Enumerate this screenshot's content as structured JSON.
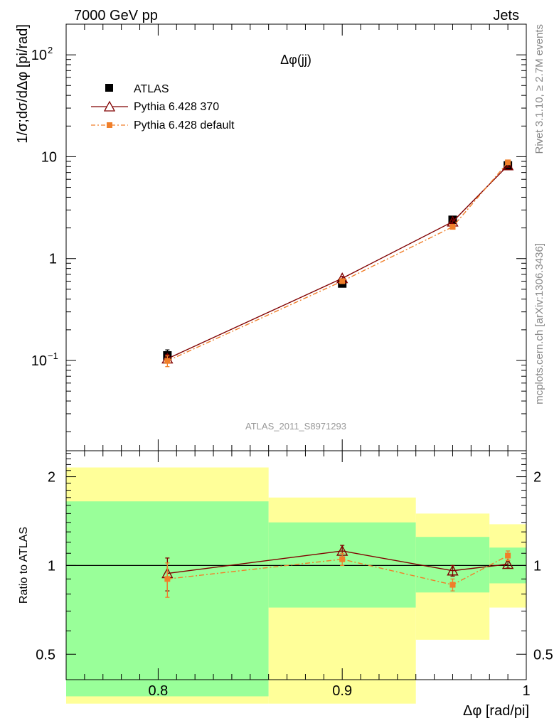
{
  "header": {
    "left": "7000 GeV pp",
    "right": "Jets"
  },
  "side_labels": {
    "top": "Rivet 3.1.10, ≥ 2.7M events",
    "bottom": "mcplots.cern.ch [arXiv:1306.3436]"
  },
  "watermark": "ATLAS_2011_S8971293",
  "colors": {
    "atlas": "#000000",
    "py370": "#800000",
    "pydefault": "#f07f2a",
    "band_green": "#99ff99",
    "band_yellow": "#ffff99"
  },
  "chart_data": [
    {
      "type": "line",
      "title": "Δφ(jj)",
      "ylabel": "1/σ;dσ/dΔφ [pi/rad]",
      "yscale": "log",
      "xlim": [
        0.75,
        1.0
      ],
      "ylim": [
        0.013,
        200
      ],
      "legend_position": "top-left",
      "y_tick_labels": [
        "10^-1",
        "1",
        "10",
        "10^2"
      ],
      "series": [
        {
          "name": "ATLAS",
          "marker": "filled-square",
          "x": [
            0.805,
            0.9,
            0.96,
            0.99
          ],
          "y": [
            0.112,
            0.57,
            2.4,
            8.2
          ],
          "yerr": [
            0.015,
            0.03,
            0.12,
            0.4
          ]
        },
        {
          "name": "Pythia 6.428 370",
          "marker": "open-triangle",
          "x": [
            0.805,
            0.9,
            0.96,
            0.99
          ],
          "y": [
            0.104,
            0.64,
            2.3,
            8.2
          ],
          "yerr": [
            0.01,
            0.03,
            0.1,
            0.3
          ]
        },
        {
          "name": "Pythia 6.428 default",
          "marker": "small-square",
          "x": [
            0.805,
            0.9,
            0.96,
            0.99
          ],
          "y": [
            0.099,
            0.6,
            2.05,
            8.8
          ],
          "yerr": [
            0.012,
            0.03,
            0.1,
            0.3
          ]
        }
      ]
    },
    {
      "type": "line",
      "ylabel": "Ratio to ATLAS",
      "xlabel": "Δφ [rad/pi]",
      "xlim": [
        0.75,
        1.0
      ],
      "ylim": [
        0.41,
        2.45
      ],
      "x_tick_labels": [
        "0.8",
        "0.9",
        "1"
      ],
      "y_tick_labels": [
        "0.5",
        "1",
        "2"
      ],
      "reference_line": 1.0,
      "bands": [
        {
          "x": [
            0.75,
            0.86
          ],
          "inner": [
            0.36,
            1.65
          ],
          "outer": [
            0.34,
            2.15
          ]
        },
        {
          "x": [
            0.86,
            0.94
          ],
          "inner": [
            0.72,
            1.4
          ],
          "outer": [
            0.34,
            1.7
          ]
        },
        {
          "x": [
            0.94,
            0.98
          ],
          "inner": [
            0.81,
            1.25
          ],
          "outer": [
            0.56,
            1.5
          ]
        },
        {
          "x": [
            0.98,
            1.0
          ],
          "inner": [
            0.87,
            1.15
          ],
          "outer": [
            0.72,
            1.38
          ]
        }
      ],
      "series": [
        {
          "name": "Pythia 6.428 370",
          "x": [
            0.805,
            0.9,
            0.96,
            0.99
          ],
          "y": [
            0.94,
            1.12,
            0.96,
            1.01
          ],
          "yerr": [
            0.12,
            0.05,
            0.04,
            0.03
          ]
        },
        {
          "name": "Pythia 6.428 default",
          "x": [
            0.805,
            0.9,
            0.96,
            0.99
          ],
          "y": [
            0.9,
            1.05,
            0.86,
            1.08
          ],
          "yerr": [
            0.12,
            0.05,
            0.04,
            0.04
          ]
        }
      ]
    }
  ]
}
